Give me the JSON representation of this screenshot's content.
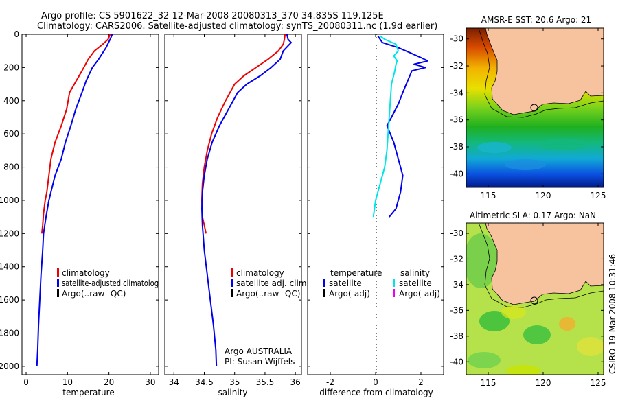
{
  "header": {
    "line1": "Argo profile: CS 5901622_32 12-Mar-2008 20080313_370 34.835S 119.125E",
    "line2": "Climatology: CARS2006. Satellite-adjusted climatology: synTS_20080311.nc (1.9d earlier)"
  },
  "side_label": "CSIRO 19-Mar-2008 10:31:46",
  "colors": {
    "climatology": "#ee0000",
    "satellite": "#0000ee",
    "argo": "#000000",
    "cyan": "#00e5e5",
    "magenta": "#ee00ee",
    "land": "#f7c39e"
  },
  "chart_data": [
    {
      "type": "line",
      "name": "temperature panel",
      "xlabel": "temperature",
      "ylabel": "",
      "xlim": [
        -1,
        32
      ],
      "ylim": [
        2050,
        0
      ],
      "y_reversed": true,
      "xticks": [
        0,
        10,
        20,
        30
      ],
      "yticks": [
        0,
        200,
        400,
        600,
        800,
        1000,
        1200,
        1400,
        1600,
        1800,
        2000
      ],
      "legend": [
        "climatology",
        "satellite-adjusted climatolog",
        "Argo(..raw -QC)"
      ],
      "series": [
        {
          "name": "climatology",
          "color": "#ee0000",
          "x": [
            20.3,
            19.8,
            18.5,
            16.5,
            15.0,
            13.5,
            12.8,
            10.5,
            9.8,
            8.5,
            7.0,
            6.0,
            5.5,
            5.0,
            4.6,
            4.2,
            4.0,
            3.8
          ],
          "y": [
            0,
            30,
            60,
            100,
            150,
            220,
            250,
            350,
            450,
            550,
            650,
            750,
            850,
            950,
            1000,
            1080,
            1150,
            1200
          ]
        },
        {
          "name": "satellite-adjusted climatology",
          "color": "#0000ee",
          "x": [
            20.8,
            20.3,
            19.3,
            17.5,
            16.0,
            14.5,
            13.5,
            12.0,
            10.8,
            9.5,
            8.5,
            7.0,
            6.0,
            5.5,
            4.8,
            4.2,
            4.0,
            3.6,
            3.3,
            3.0,
            2.8,
            2.6
          ],
          "y": [
            0,
            30,
            80,
            150,
            200,
            280,
            350,
            450,
            550,
            650,
            750,
            850,
            950,
            1000,
            1100,
            1200,
            1300,
            1450,
            1600,
            1750,
            1900,
            2000
          ]
        }
      ]
    },
    {
      "type": "line",
      "name": "salinity panel",
      "xlabel": "salinity",
      "ylabel": "",
      "xlim": [
        33.85,
        36.1
      ],
      "ylim": [
        2050,
        0
      ],
      "y_reversed": true,
      "xticks": [
        34,
        34.5,
        35,
        35.5,
        36
      ],
      "legend": [
        "climatology",
        "satellite adj. clim.",
        "Argo(..raw -QC)"
      ],
      "annotation": [
        "Argo AUSTRALIA",
        "PI: Susan Wijffels"
      ],
      "series": [
        {
          "name": "climatology",
          "color": "#ee0000",
          "x": [
            35.83,
            35.82,
            35.8,
            35.72,
            35.55,
            35.35,
            35.15,
            35.0,
            34.85,
            34.72,
            34.62,
            34.55,
            34.5,
            34.47,
            34.46,
            34.47,
            34.5,
            34.53
          ],
          "y": [
            0,
            30,
            60,
            100,
            150,
            200,
            250,
            300,
            400,
            500,
            600,
            700,
            800,
            900,
            1000,
            1100,
            1150,
            1200
          ]
        },
        {
          "name": "satellite adj. clim.",
          "color": "#0000ee",
          "x": [
            35.86,
            35.88,
            35.93,
            35.8,
            35.75,
            35.6,
            35.42,
            35.2,
            35.05,
            34.9,
            34.75,
            34.63,
            34.55,
            34.5,
            34.47,
            34.46,
            34.47,
            34.5,
            34.55,
            34.6,
            34.65,
            34.69,
            34.7
          ],
          "y": [
            0,
            30,
            50,
            100,
            150,
            200,
            250,
            300,
            350,
            450,
            550,
            650,
            750,
            850,
            950,
            1050,
            1150,
            1300,
            1450,
            1600,
            1750,
            1900,
            2000
          ]
        }
      ]
    },
    {
      "type": "line",
      "name": "difference panel",
      "xlabel": "difference from climatology",
      "ylabel": "",
      "xlim": [
        -3,
        3
      ],
      "ylim": [
        2050,
        0
      ],
      "y_reversed": true,
      "xticks": [
        -2,
        0,
        2
      ],
      "zero_line": true,
      "legend_left": [
        "temperature",
        "satellite",
        "Argo(-adj)"
      ],
      "legend_right": [
        "salinity",
        "satellite",
        "Argo(-adj)"
      ],
      "series": [
        {
          "name": "temperature satellite",
          "color": "#0000ee",
          "x": [
            0.1,
            0.3,
            1.0,
            1.5,
            2.0,
            2.3,
            1.7,
            2.2,
            1.6,
            1.2,
            1.0,
            0.7,
            0.5,
            0.8,
            1.0,
            1.2,
            1.1,
            0.9,
            0.6
          ],
          "y": [
            10,
            50,
            80,
            110,
            140,
            160,
            180,
            200,
            220,
            350,
            420,
            500,
            550,
            650,
            750,
            850,
            950,
            1050,
            1100
          ]
        },
        {
          "name": "salinity satellite",
          "color": "#00e5e5",
          "x": [
            0.2,
            0.4,
            0.9,
            1.0,
            0.8,
            0.95,
            0.9,
            0.85,
            0.7,
            0.6,
            0.5,
            0.4,
            0.3,
            0.1,
            0.0,
            -0.1
          ],
          "y": [
            10,
            30,
            60,
            100,
            130,
            160,
            180,
            220,
            300,
            500,
            700,
            800,
            850,
            950,
            1000,
            1100
          ]
        }
      ]
    },
    {
      "type": "heatmap",
      "name": "sst map",
      "title": "AMSR-E SST: 20.6 Argo: 21",
      "xlim": [
        113,
        125.5
      ],
      "ylim": [
        -41,
        -29.2
      ],
      "xticks": [
        115,
        120,
        125
      ],
      "yticks": [
        -30,
        -32,
        -34,
        -36,
        -38,
        -40
      ]
    },
    {
      "type": "heatmap",
      "name": "sla map",
      "title": "Altimetric SLA: 0.17 Argo: NaN",
      "xlim": [
        113,
        125.5
      ],
      "ylim": [
        -41,
        -29.2
      ],
      "xticks": [
        115,
        120,
        125
      ],
      "yticks": [
        -30,
        -32,
        -34,
        -36,
        -38,
        -40
      ]
    }
  ]
}
